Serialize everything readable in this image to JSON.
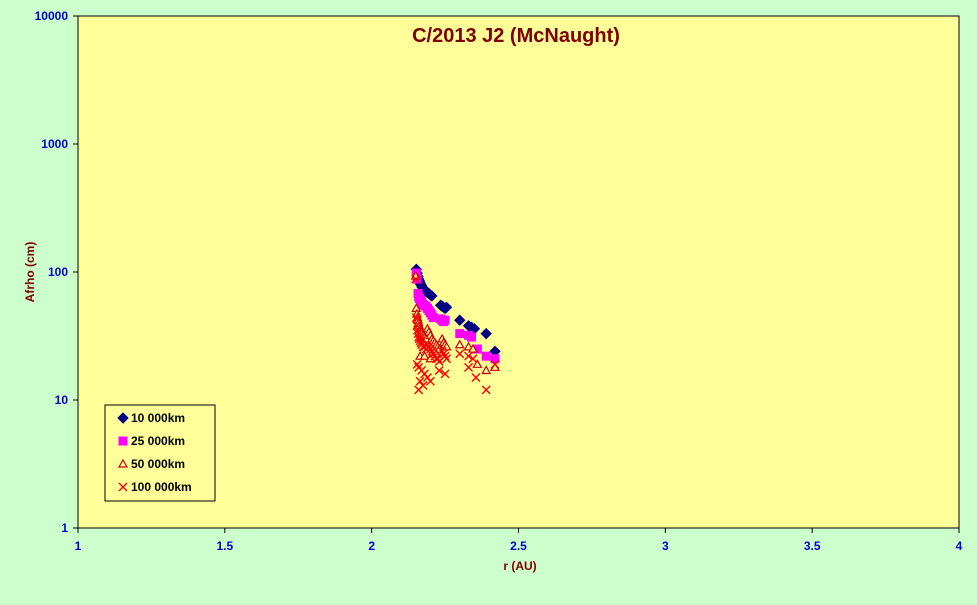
{
  "colors": {
    "background": "#ccffcc",
    "plot_area": "#ffff99",
    "title": "#800000",
    "axis_label": "#800000",
    "tick_label": "#0000cc"
  },
  "chart_data": {
    "type": "scatter",
    "title": "C/2013 J2 (McNaught)",
    "xlabel": "r (AU)",
    "ylabel": "Afrho (cm)",
    "xlim": [
      1,
      4
    ],
    "ylim": [
      1,
      10000
    ],
    "yscale": "log",
    "x_ticks": [
      "1",
      "1.5",
      "2",
      "2.5",
      "3",
      "3.5",
      "4"
    ],
    "y_ticks": [
      "1",
      "10",
      "100",
      "1000",
      "10000"
    ],
    "grid": false,
    "legend_position": "bottom-left",
    "series": [
      {
        "name": "10 000km",
        "marker": "diamond",
        "color": "#000080",
        "points": [
          [
            2.152,
            105
          ],
          [
            2.155,
            98
          ],
          [
            2.158,
            92
          ],
          [
            2.16,
            88
          ],
          [
            2.163,
            85
          ],
          [
            2.165,
            82
          ],
          [
            2.167,
            80
          ],
          [
            2.17,
            78
          ],
          [
            2.172,
            76
          ],
          [
            2.175,
            75
          ],
          [
            2.178,
            73
          ],
          [
            2.18,
            72
          ],
          [
            2.183,
            71
          ],
          [
            2.186,
            70
          ],
          [
            2.19,
            69
          ],
          [
            2.195,
            68
          ],
          [
            2.2,
            66
          ],
          [
            2.205,
            65
          ],
          [
            2.235,
            55
          ],
          [
            2.24,
            54
          ],
          [
            2.245,
            53
          ],
          [
            2.25,
            52
          ],
          [
            2.255,
            53
          ],
          [
            2.3,
            42
          ],
          [
            2.33,
            38
          ],
          [
            2.34,
            37
          ],
          [
            2.35,
            36
          ],
          [
            2.39,
            33
          ],
          [
            2.42,
            24
          ]
        ]
      },
      {
        "name": "25 000km",
        "marker": "square",
        "color": "#ff00ff",
        "points": [
          [
            2.152,
            98
          ],
          [
            2.155,
            88
          ],
          [
            2.158,
            68
          ],
          [
            2.16,
            64
          ],
          [
            2.163,
            62
          ],
          [
            2.166,
            60
          ],
          [
            2.17,
            58
          ],
          [
            2.174,
            56
          ],
          [
            2.178,
            55
          ],
          [
            2.185,
            54
          ],
          [
            2.19,
            52
          ],
          [
            2.195,
            50
          ],
          [
            2.2,
            48
          ],
          [
            2.205,
            46
          ],
          [
            2.21,
            44
          ],
          [
            2.235,
            43
          ],
          [
            2.24,
            42
          ],
          [
            2.245,
            41
          ],
          [
            2.25,
            42
          ],
          [
            2.3,
            33
          ],
          [
            2.33,
            32
          ],
          [
            2.34,
            31
          ],
          [
            2.36,
            25
          ],
          [
            2.39,
            22
          ],
          [
            2.42,
            21
          ]
        ]
      },
      {
        "name": "50 000km",
        "marker": "triangle",
        "color": "#cc0000",
        "points": [
          [
            2.15,
            93
          ],
          [
            2.152,
            52
          ],
          [
            2.154,
            47
          ],
          [
            2.156,
            44
          ],
          [
            2.158,
            42
          ],
          [
            2.16,
            40
          ],
          [
            2.162,
            38
          ],
          [
            2.165,
            36
          ],
          [
            2.168,
            34
          ],
          [
            2.17,
            33
          ],
          [
            2.175,
            32
          ],
          [
            2.18,
            31
          ],
          [
            2.185,
            30
          ],
          [
            2.19,
            36
          ],
          [
            2.195,
            34
          ],
          [
            2.2,
            32
          ],
          [
            2.205,
            30
          ],
          [
            2.21,
            29
          ],
          [
            2.215,
            28
          ],
          [
            2.22,
            27
          ],
          [
            2.225,
            26
          ],
          [
            2.23,
            25
          ],
          [
            2.24,
            30
          ],
          [
            2.245,
            28
          ],
          [
            2.25,
            27
          ],
          [
            2.255,
            26
          ],
          [
            2.3,
            27
          ],
          [
            2.33,
            26
          ],
          [
            2.345,
            25
          ],
          [
            2.165,
            22
          ],
          [
            2.18,
            22
          ],
          [
            2.2,
            21
          ],
          [
            2.36,
            19
          ],
          [
            2.39,
            17
          ],
          [
            2.42,
            18
          ]
        ]
      },
      {
        "name": "100 000km",
        "marker": "x",
        "color": "#ff0000",
        "points": [
          [
            2.15,
            88
          ],
          [
            2.152,
            44
          ],
          [
            2.154,
            38
          ],
          [
            2.156,
            35
          ],
          [
            2.158,
            33
          ],
          [
            2.16,
            31
          ],
          [
            2.162,
            30
          ],
          [
            2.165,
            29
          ],
          [
            2.168,
            28
          ],
          [
            2.17,
            27
          ],
          [
            2.175,
            26
          ],
          [
            2.18,
            26
          ],
          [
            2.185,
            25
          ],
          [
            2.19,
            27
          ],
          [
            2.195,
            26
          ],
          [
            2.2,
            25
          ],
          [
            2.205,
            24
          ],
          [
            2.21,
            23
          ],
          [
            2.215,
            22
          ],
          [
            2.22,
            21
          ],
          [
            2.225,
            21
          ],
          [
            2.23,
            20
          ],
          [
            2.24,
            24
          ],
          [
            2.245,
            23
          ],
          [
            2.25,
            22
          ],
          [
            2.255,
            21
          ],
          [
            2.3,
            23
          ],
          [
            2.33,
            22
          ],
          [
            2.345,
            21
          ],
          [
            2.155,
            19
          ],
          [
            2.16,
            18
          ],
          [
            2.17,
            17
          ],
          [
            2.18,
            16
          ],
          [
            2.19,
            15
          ],
          [
            2.2,
            14
          ],
          [
            2.165,
            14
          ],
          [
            2.175,
            13
          ],
          [
            2.16,
            12
          ],
          [
            2.23,
            17
          ],
          [
            2.25,
            16
          ],
          [
            2.33,
            18
          ],
          [
            2.355,
            15
          ],
          [
            2.39,
            12
          ],
          [
            2.42,
            19
          ]
        ]
      }
    ]
  }
}
